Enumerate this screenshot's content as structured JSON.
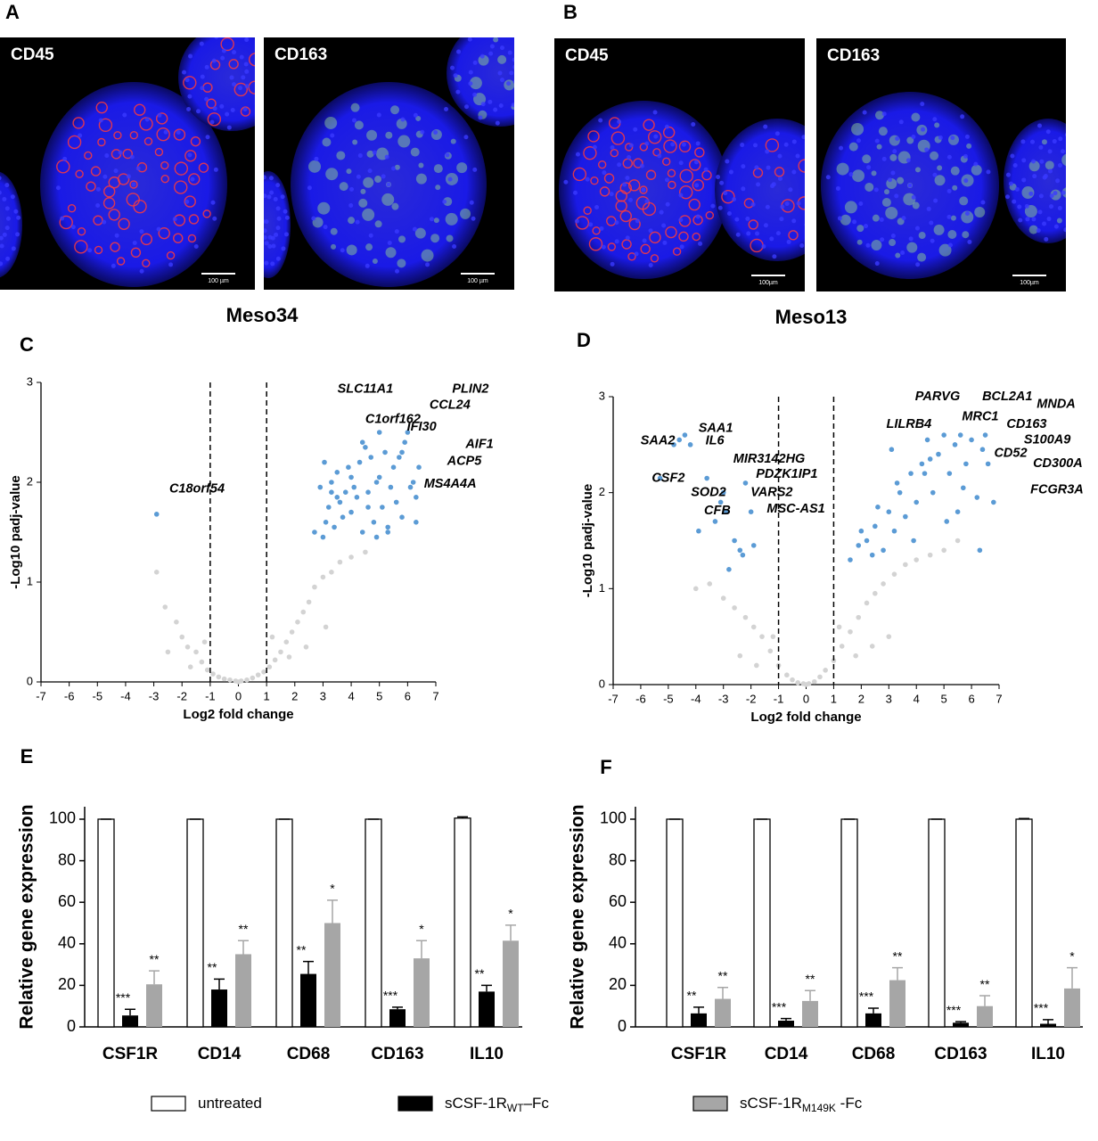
{
  "figure": {
    "panels": [
      {
        "letter": "A",
        "caption": "Meso34",
        "images": [
          {
            "label": "CD45",
            "scale_bar": "100 µm"
          },
          {
            "label": "CD163",
            "scale_bar": "100 µm"
          }
        ]
      },
      {
        "letter": "B",
        "caption": "Meso13",
        "images": [
          {
            "label": "CD45",
            "scale_bar": "100µm"
          },
          {
            "label": "CD163",
            "scale_bar": "100µm"
          }
        ]
      }
    ]
  },
  "chart_data": [
    {
      "type": "scatter",
      "letter": "C",
      "xlabel": "Log2 fold change",
      "ylabel": "-Log10 padj-value",
      "xlim": [
        -7,
        7
      ],
      "ylim": [
        0,
        3
      ],
      "xticks": [
        -7,
        -6,
        -5,
        -4,
        -3,
        -2,
        -1,
        0,
        1,
        2,
        3,
        4,
        5,
        6,
        7
      ],
      "yticks": [
        0,
        1,
        2,
        3
      ],
      "thresholds": [
        -1,
        1
      ],
      "series": [
        {
          "color": "#d3d3d3",
          "x": [
            -2.6,
            -2.2,
            -2.0,
            -1.8,
            -1.5,
            -1.3,
            -1.1,
            -0.9,
            -0.7,
            -0.5,
            -0.3,
            -0.1,
            0.1,
            0.3,
            0.5,
            0.7,
            0.9,
            1.1,
            1.3,
            1.5,
            1.7,
            1.9,
            2.1,
            2.3,
            2.5,
            2.7,
            3.0,
            3.3,
            3.6,
            4.0,
            4.5,
            -2.5,
            -1.7,
            -1.2,
            1.2,
            1.8,
            2.4,
            3.1,
            -2.9,
            0.0
          ],
          "values": [
            0.75,
            0.6,
            0.45,
            0.35,
            0.3,
            0.2,
            0.12,
            0.08,
            0.05,
            0.03,
            0.02,
            0.01,
            0.01,
            0.02,
            0.04,
            0.07,
            0.1,
            0.15,
            0.22,
            0.3,
            0.4,
            0.5,
            0.6,
            0.7,
            0.8,
            0.95,
            1.05,
            1.1,
            1.2,
            1.25,
            1.3,
            0.3,
            0.15,
            0.4,
            0.45,
            0.25,
            0.35,
            0.55,
            1.1,
            0.0
          ]
        },
        {
          "color": "#5b9bd5",
          "x": [
            2.7,
            2.9,
            3.0,
            3.1,
            3.2,
            3.3,
            3.4,
            3.5,
            3.6,
            3.7,
            3.8,
            3.9,
            4.0,
            4.1,
            4.2,
            4.3,
            4.4,
            4.5,
            4.6,
            4.7,
            4.8,
            4.9,
            5.0,
            5.1,
            5.2,
            5.3,
            5.4,
            5.5,
            5.6,
            5.7,
            5.8,
            5.9,
            6.0,
            6.1,
            6.2,
            6.3,
            6.4,
            3.05,
            3.5,
            4.0,
            4.4,
            4.9,
            5.3,
            5.8,
            6.3,
            3.3,
            4.6,
            5.0,
            -2.9
          ],
          "values": [
            1.5,
            1.95,
            1.45,
            1.6,
            1.75,
            2.0,
            1.55,
            2.1,
            1.8,
            1.65,
            1.9,
            2.15,
            1.7,
            1.95,
            1.85,
            2.2,
            1.5,
            2.35,
            1.9,
            2.25,
            1.6,
            2.0,
            2.05,
            1.75,
            2.3,
            1.55,
            1.95,
            2.15,
            1.8,
            2.25,
            1.65,
            2.4,
            2.5,
            1.95,
            2.0,
            1.85,
            2.15,
            2.2,
            1.85,
            2.05,
            2.4,
            1.45,
            1.5,
            2.3,
            1.6,
            1.9,
            1.75,
            2.5,
            1.68
          ]
        }
      ],
      "annotations": [
        {
          "text": "SLC11A1",
          "x": 4.5,
          "y": 2.93
        },
        {
          "text": "PLIN2",
          "x": 8.23,
          "y": 2.93
        },
        {
          "text": "CCL24",
          "x": 7.5,
          "y": 2.77
        },
        {
          "text": "C1orf162",
          "x": 5.48,
          "y": 2.63
        },
        {
          "text": "IFI30",
          "x": 6.5,
          "y": 2.55
        },
        {
          "text": "AIF1",
          "x": 8.55,
          "y": 2.38
        },
        {
          "text": "ACP5",
          "x": 8.01,
          "y": 2.21
        },
        {
          "text": "MS4A4A",
          "x": 7.51,
          "y": 1.98
        },
        {
          "text": "C18orf54",
          "x": -1.47,
          "y": 1.93
        }
      ]
    },
    {
      "type": "scatter",
      "letter": "D",
      "xlabel": "Log2 fold change",
      "ylabel": "-Log10 padj-value",
      "xlim": [
        -7,
        7
      ],
      "ylim": [
        0,
        3
      ],
      "xticks": [
        -7,
        -6,
        -5,
        -4,
        -3,
        -2,
        -1,
        0,
        1,
        2,
        3,
        4,
        5,
        6,
        7
      ],
      "yticks": [
        0,
        1,
        2,
        3
      ],
      "thresholds": [
        -1,
        1
      ],
      "series": [
        {
          "color": "#d3d3d3",
          "x": [
            -3.5,
            -3.0,
            -2.6,
            -2.2,
            -1.9,
            -1.6,
            -1.3,
            -1.0,
            -0.7,
            -0.5,
            -0.3,
            -0.1,
            0.1,
            0.3,
            0.5,
            0.7,
            1.0,
            1.3,
            1.6,
            1.9,
            2.2,
            2.5,
            2.8,
            3.2,
            3.6,
            4.0,
            4.5,
            5.0,
            -2.4,
            -1.8,
            -1.2,
            1.2,
            1.8,
            2.4,
            3.0,
            0.0,
            -4.0,
            5.5
          ],
          "values": [
            1.05,
            0.9,
            0.8,
            0.7,
            0.6,
            0.5,
            0.35,
            0.2,
            0.1,
            0.05,
            0.02,
            0.01,
            0.01,
            0.03,
            0.08,
            0.15,
            0.25,
            0.4,
            0.55,
            0.7,
            0.85,
            0.95,
            1.05,
            1.15,
            1.25,
            1.3,
            1.35,
            1.4,
            0.3,
            0.2,
            0.5,
            0.6,
            0.3,
            0.4,
            0.5,
            0.0,
            1.0,
            1.5
          ]
        },
        {
          "color": "#5b9bd5",
          "x": [
            -5.3,
            -4.8,
            -4.6,
            -4.2,
            -3.9,
            -3.6,
            -3.3,
            -3.1,
            -2.9,
            -2.6,
            -2.4,
            -2.2,
            -2.0,
            -1.9,
            -4.4,
            -3.0,
            -2.3,
            -2.8,
            1.6,
            1.9,
            2.2,
            2.5,
            2.8,
            3.0,
            3.2,
            3.4,
            3.6,
            3.8,
            4.0,
            4.2,
            4.4,
            4.6,
            4.8,
            5.0,
            5.2,
            5.4,
            5.6,
            5.8,
            6.0,
            6.2,
            6.4,
            6.6,
            6.8,
            2.0,
            2.6,
            3.3,
            3.9,
            4.5,
            5.1,
            5.7,
            6.3,
            2.4,
            3.1,
            4.3,
            5.5,
            6.5
          ],
          "values": [
            2.15,
            2.5,
            2.55,
            2.5,
            1.6,
            2.15,
            1.7,
            1.9,
            1.8,
            1.5,
            1.4,
            2.1,
            1.8,
            1.45,
            2.6,
            2.0,
            1.35,
            1.2,
            1.3,
            1.45,
            1.5,
            1.65,
            1.4,
            1.8,
            1.6,
            2.0,
            1.75,
            2.2,
            1.9,
            2.3,
            2.55,
            2.0,
            2.4,
            2.6,
            2.2,
            2.5,
            2.6,
            2.3,
            2.55,
            1.95,
            2.45,
            2.3,
            1.9,
            1.6,
            1.85,
            2.1,
            1.5,
            2.35,
            1.7,
            2.05,
            1.4,
            1.35,
            2.45,
            2.2,
            1.8,
            2.6
          ]
        }
      ],
      "annotations": [
        {
          "text": "SAA1",
          "x": -3.28,
          "y": 2.67
        },
        {
          "text": "SAA2",
          "x": -5.38,
          "y": 2.54
        },
        {
          "text": "IL6",
          "x": -3.31,
          "y": 2.54
        },
        {
          "text": "MIR3142HG",
          "x": -1.34,
          "y": 2.35
        },
        {
          "text": "CSF2",
          "x": -5.0,
          "y": 2.15
        },
        {
          "text": "PDZK1IP1",
          "x": -0.7,
          "y": 2.19
        },
        {
          "text": "SOD2",
          "x": -3.54,
          "y": 2.0
        },
        {
          "text": "VARS2",
          "x": -1.25,
          "y": 2.0
        },
        {
          "text": "CFB",
          "x": -3.22,
          "y": 1.81
        },
        {
          "text": "MSC-AS1",
          "x": -0.37,
          "y": 1.83
        },
        {
          "text": "PARVG",
          "x": 4.77,
          "y": 3.0
        },
        {
          "text": "BCL2A1",
          "x": 7.3,
          "y": 3.0
        },
        {
          "text": "MNDA",
          "x": 9.07,
          "y": 2.92
        },
        {
          "text": "LILRB4",
          "x": 3.73,
          "y": 2.71
        },
        {
          "text": "MRC1",
          "x": 6.32,
          "y": 2.79
        },
        {
          "text": "CD163",
          "x": 8.0,
          "y": 2.71
        },
        {
          "text": "S100A9",
          "x": 8.75,
          "y": 2.55
        },
        {
          "text": "CD52",
          "x": 7.42,
          "y": 2.41
        },
        {
          "text": "CD300A",
          "x": 9.13,
          "y": 2.3
        },
        {
          "text": "FCGR3A",
          "x": 9.1,
          "y": 2.03
        }
      ]
    },
    {
      "type": "bar",
      "letter": "E",
      "ylabel": "Relative gene expression",
      "categories": [
        "CSF1R",
        "CD14",
        "CD68",
        "CD163",
        "IL10"
      ],
      "ylim": [
        0,
        106
      ],
      "yticks": [
        0,
        20,
        40,
        60,
        80,
        100
      ],
      "series": [
        {
          "name": "untreated",
          "color": "#ffffff",
          "edgecolor": "#000000",
          "values": [
            100,
            100,
            100,
            100,
            100.5
          ],
          "errors": [
            0,
            0,
            0,
            0,
            0.6
          ]
        },
        {
          "name": "sCSF-1R",
          "name_sub": "WT",
          "name_suffix": "–Fc",
          "color": "#000000",
          "values": [
            5.5,
            18,
            25.5,
            8.5,
            17
          ],
          "errors": [
            3,
            5,
            6,
            1,
            3
          ],
          "significance": [
            "***",
            "**",
            "**",
            "***",
            "**"
          ]
        },
        {
          "name": "sCSF-1R",
          "name_sub": "M149K",
          "name_suffix": " -Fc",
          "color": "#a6a6a6",
          "values": [
            20.5,
            35,
            50,
            33,
            41.5
          ],
          "errors": [
            6.5,
            6.5,
            11,
            8.5,
            7.5
          ],
          "significance": [
            "**",
            "**",
            "*",
            "*",
            "*"
          ]
        }
      ]
    },
    {
      "type": "bar",
      "letter": "F",
      "ylabel": "Relative gene expression",
      "categories": [
        "CSF1R",
        "CD14",
        "CD68",
        "CD163",
        "IL10"
      ],
      "ylim": [
        0,
        106
      ],
      "yticks": [
        0,
        20,
        40,
        60,
        80,
        100
      ],
      "series": [
        {
          "color": "#ffffff",
          "edgecolor": "#000000",
          "values": [
            100,
            100,
            100,
            100,
            100
          ],
          "errors": [
            0,
            0,
            0,
            0,
            0.3
          ]
        },
        {
          "color": "#000000",
          "values": [
            6.5,
            3,
            6.5,
            2,
            1.5
          ],
          "errors": [
            3,
            1,
            2.5,
            0.5,
            2
          ],
          "significance": [
            "**",
            "***",
            "***",
            "***",
            "***"
          ]
        },
        {
          "color": "#a6a6a6",
          "values": [
            13.5,
            12.5,
            22.5,
            10,
            18.5
          ],
          "errors": [
            5.5,
            5,
            6,
            5,
            10
          ],
          "significance": [
            "**",
            "**",
            "**",
            "**",
            "*"
          ]
        }
      ]
    }
  ]
}
